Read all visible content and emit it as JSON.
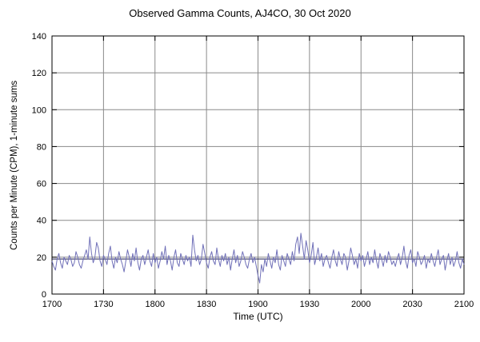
{
  "chart_data": {
    "type": "line",
    "title": "Observed Gamma Counts, AJ4CO, 30 Oct 2020",
    "xlabel": "Time (UTC)",
    "ylabel": "Counts per Minute (CPM), 1-minute sums",
    "grid": true,
    "grid_color": "#8a8a8a",
    "border_color": "#000000",
    "x": {
      "tick_labels": [
        "1700",
        "1730",
        "1800",
        "1830",
        "1900",
        "1930",
        "2000",
        "2030",
        "2100"
      ],
      "minutes_span": 240
    },
    "y": {
      "min": 0,
      "max": 140,
      "tick_step": 20
    },
    "mean_line": {
      "value": 19,
      "color": "#202050"
    },
    "series": [
      {
        "name": "gamma-counts-1min",
        "color": "#7070b8",
        "values": [
          18,
          15,
          13,
          19,
          22,
          17,
          14,
          20,
          18,
          16,
          21,
          19,
          15,
          17,
          23,
          20,
          16,
          14,
          18,
          21,
          24,
          19,
          31,
          22,
          17,
          20,
          28,
          25,
          18,
          15,
          21,
          19,
          16,
          22,
          26,
          18,
          14,
          20,
          17,
          23,
          19,
          16,
          12,
          18,
          24,
          20,
          15,
          22,
          18,
          25,
          17,
          13,
          19,
          21,
          16,
          20,
          24,
          18,
          15,
          22,
          17,
          20,
          14,
          18,
          23,
          19,
          26,
          16,
          21,
          18,
          13,
          20,
          24,
          17,
          15,
          22,
          19,
          16,
          21,
          18,
          20,
          15,
          32,
          24,
          18,
          21,
          16,
          19,
          27,
          22,
          17,
          14,
          20,
          23,
          18,
          16,
          25,
          19,
          15,
          21,
          18,
          22,
          16,
          20,
          13,
          19,
          24,
          17,
          21,
          15,
          18,
          23,
          20,
          16,
          14,
          19,
          22,
          17,
          20,
          15,
          10,
          6,
          16,
          12,
          19,
          15,
          22,
          18,
          14,
          20,
          17,
          24,
          16,
          13,
          21,
          18,
          15,
          22,
          19,
          16,
          23,
          18,
          27,
          31,
          22,
          33,
          26,
          19,
          29,
          24,
          17,
          21,
          28,
          16,
          20,
          25,
          18,
          22,
          15,
          19,
          21,
          17,
          14,
          20,
          24,
          18,
          15,
          23,
          19,
          16,
          22,
          20,
          13,
          18,
          25,
          21,
          16,
          19,
          14,
          22,
          18,
          21,
          15,
          19,
          23,
          16,
          20,
          17,
          24,
          18,
          14,
          22,
          19,
          15,
          21,
          17,
          23,
          20,
          16,
          18,
          15,
          19,
          22,
          16,
          20,
          26,
          18,
          14,
          21,
          24,
          17,
          19,
          15,
          23,
          20,
          16,
          18,
          21,
          14,
          19,
          17,
          22,
          18,
          15,
          20,
          24,
          16,
          19,
          21,
          13,
          18,
          22,
          16,
          20,
          15,
          18,
          23,
          17,
          14,
          19,
          16
        ]
      }
    ]
  }
}
